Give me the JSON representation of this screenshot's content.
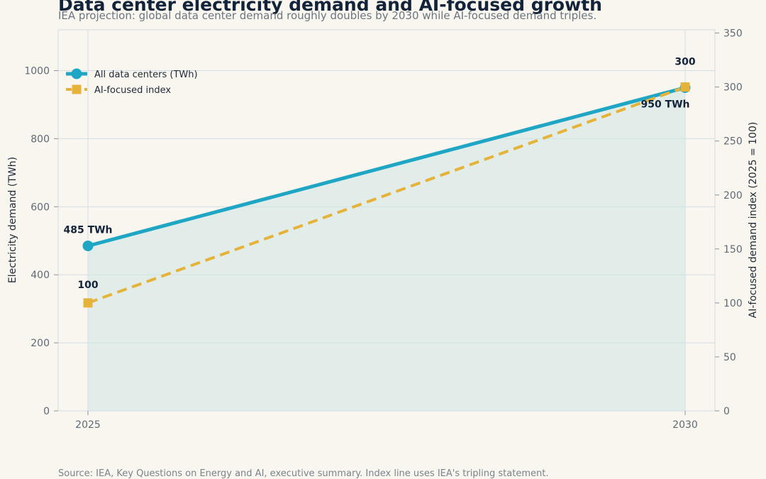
{
  "chart_data": {
    "type": "line",
    "title": "Data center electricity demand and AI-focused growth",
    "subtitle": "IEA projection: global data center demand roughly doubles by 2030 while AI-focused demand triples.",
    "x": [
      "2025",
      "2030"
    ],
    "ylabel": "Electricity demand (TWh)",
    "y2label": "AI-focused demand index (2025 = 100)",
    "ylim": [
      0,
      1120
    ],
    "y2lim": [
      0,
      353
    ],
    "yticks": [
      "0",
      "200",
      "400",
      "600",
      "800",
      "1000"
    ],
    "y2ticks": [
      "0",
      "50",
      "100",
      "150",
      "200",
      "250",
      "300",
      "350"
    ],
    "grid": true,
    "legend_position": "top-left",
    "series": [
      {
        "name": "All data centers (TWh)",
        "axis": "left",
        "values": [
          485,
          950
        ],
        "labels": [
          "485 TWh",
          "950 TWh"
        ],
        "color": "#1fa6c4",
        "marker": "circle",
        "style": "solid",
        "fill": true
      },
      {
        "name": "AI-focused index",
        "axis": "right",
        "values": [
          100,
          300
        ],
        "labels": [
          "100",
          "300"
        ],
        "color": "#e6b33a",
        "marker": "square",
        "style": "dashed"
      }
    ],
    "source": "Source: IEA, Key Questions on Energy and AI, executive summary. Index line uses IEA's tripling statement."
  }
}
